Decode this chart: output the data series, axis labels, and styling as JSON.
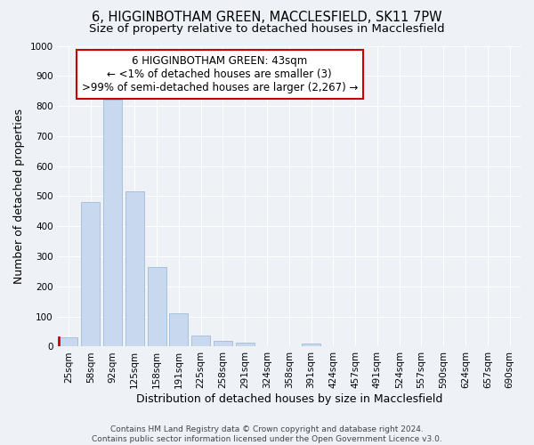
{
  "title1": "6, HIGGINBOTHAM GREEN, MACCLESFIELD, SK11 7PW",
  "title2": "Size of property relative to detached houses in Macclesfield",
  "xlabel": "Distribution of detached houses by size in Macclesfield",
  "ylabel": "Number of detached properties",
  "categories": [
    "25sqm",
    "58sqm",
    "92sqm",
    "125sqm",
    "158sqm",
    "191sqm",
    "225sqm",
    "258sqm",
    "291sqm",
    "324sqm",
    "358sqm",
    "391sqm",
    "424sqm",
    "457sqm",
    "491sqm",
    "524sqm",
    "557sqm",
    "590sqm",
    "624sqm",
    "657sqm",
    "690sqm"
  ],
  "values": [
    30,
    480,
    820,
    515,
    265,
    110,
    38,
    18,
    12,
    0,
    0,
    10,
    0,
    0,
    0,
    0,
    0,
    0,
    0,
    0,
    0
  ],
  "bar_color": "#c8d8ee",
  "bar_edge_color": "#a0bcd8",
  "highlight_bar_index": 0,
  "highlight_left_edge_color": "#cc0000",
  "ylim": [
    0,
    1000
  ],
  "yticks": [
    0,
    100,
    200,
    300,
    400,
    500,
    600,
    700,
    800,
    900,
    1000
  ],
  "annotation_line1": "6 HIGGINBOTHAM GREEN: 43sqm",
  "annotation_line2": "← <1% of detached houses are smaller (3)",
  "annotation_line3": ">99% of semi-detached houses are larger (2,267) →",
  "annotation_box_color": "#ffffff",
  "annotation_box_edge_color": "#cc0000",
  "footer1": "Contains HM Land Registry data © Crown copyright and database right 2024.",
  "footer2": "Contains public sector information licensed under the Open Government Licence v3.0.",
  "background_color": "#eef2f7",
  "grid_color": "#ffffff",
  "title_fontsize": 10.5,
  "subtitle_fontsize": 9.5,
  "axis_label_fontsize": 9,
  "tick_fontsize": 7.5,
  "annotation_fontsize": 8.5,
  "footer_fontsize": 6.5
}
